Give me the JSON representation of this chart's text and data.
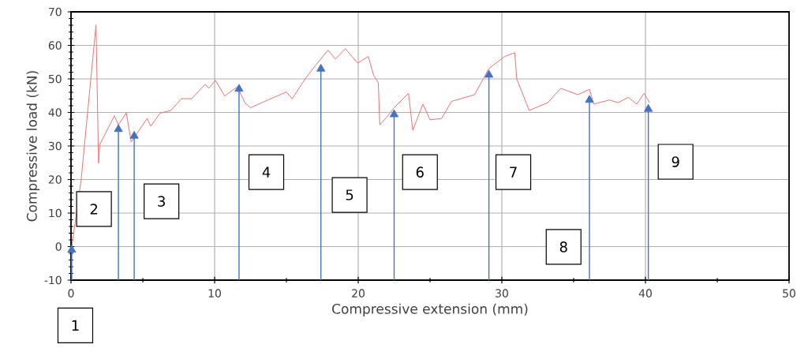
{
  "chart_data": {
    "type": "line",
    "xlabel": "Compressive extension (mm)",
    "ylabel": "Compressive load (kN)",
    "series": [
      {
        "color": "#f07070",
        "x": [
          0.05,
          0.71,
          1.74,
          1.92,
          2.0,
          3.02,
          3.3,
          3.85,
          4.19,
          5.3,
          5.55,
          6.2,
          6.96,
          7.69,
          8.4,
          9.34,
          9.6,
          10.05,
          10.7,
          11.2,
          11.6,
          12.1,
          12.5,
          13.7,
          15.0,
          15.4,
          16.3,
          17.0,
          17.9,
          18.4,
          19.1,
          19.96,
          20.7,
          21.06,
          21.4,
          21.5,
          21.98,
          22.5,
          23.5,
          23.8,
          24.5,
          25.0,
          25.8,
          26.5,
          28.1,
          29.1,
          30.2,
          30.9,
          31.04,
          31.9,
          33.2,
          34.1,
          35.3,
          36.1,
          36.4,
          37.5,
          38.1,
          38.8,
          39.4,
          39.9,
          40.3
        ],
        "values": [
          -0.1,
          20.1,
          66.1,
          24.9,
          30.4,
          39.0,
          36.3,
          39.9,
          31.2,
          38.2,
          35.9,
          39.8,
          40.6,
          44.1,
          44.1,
          48.4,
          47.2,
          49.6,
          44.9,
          46.5,
          47.6,
          42.9,
          41.4,
          43.7,
          46.1,
          44.1,
          50.0,
          53.9,
          58.6,
          55.9,
          59.0,
          54.7,
          56.7,
          51.2,
          48.8,
          36.3,
          38.6,
          41.4,
          45.7,
          34.7,
          42.5,
          37.8,
          38.2,
          43.3,
          45.3,
          53.1,
          56.7,
          57.8,
          50.0,
          40.6,
          42.9,
          47.2,
          45.3,
          46.9,
          42.5,
          43.7,
          42.9,
          44.5,
          42.5,
          45.7,
          42.9
        ]
      },
      {
        "type": "bar",
        "color": "#4472c4",
        "x": [
          0.05,
          3.3,
          4.4,
          11.7,
          17.4,
          22.5,
          29.1,
          36.1,
          40.2
        ],
        "base": [
          -10,
          -10,
          -10,
          -10,
          -10,
          -10,
          -10,
          -10,
          -10
        ],
        "values": [
          9,
          45,
          43,
          57,
          63,
          49.4,
          61.2,
          53.7,
          51
        ]
      },
      {
        "type": "scatter",
        "color": "#4472c4",
        "marker": "triangle",
        "x": [
          0.05,
          3.3,
          4.4,
          11.7,
          17.4,
          22.5,
          29.1,
          36.1,
          40.2
        ],
        "values": [
          -1,
          35,
          33,
          47,
          53,
          39.4,
          51.2,
          43.7,
          41
        ]
      }
    ],
    "xlim": [
      0,
      50
    ],
    "ylim": [
      -10,
      70
    ],
    "xticks": [
      0,
      10,
      20,
      30,
      40,
      50
    ],
    "yticks": [
      -10,
      0,
      10,
      20,
      30,
      40,
      50,
      60,
      70
    ],
    "grid": true,
    "annotations": [
      "1",
      "2",
      "3",
      "4",
      "5",
      "6",
      "7",
      "8",
      "9"
    ]
  }
}
